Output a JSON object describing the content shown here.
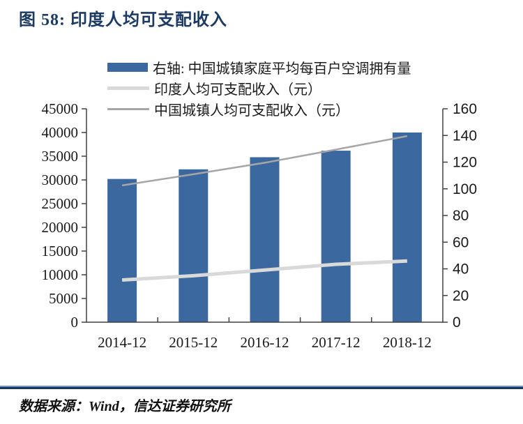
{
  "header": {
    "title": "图 58: 印度人均可支配收入"
  },
  "colors": {
    "title": "#1B3A64",
    "axis": "#404040",
    "text": "#1A1A1A",
    "separator_top": "#6E93C4",
    "separator_bottom": "#17375E",
    "background": "#FFFFFF"
  },
  "footer": {
    "source": "数据来源：Wind，信达证券研究所"
  },
  "chart_data": {
    "type": "bar",
    "subtype": "combo-bar-line-dual-axis",
    "title": "图 58: 印度人均可支配收入",
    "categories": [
      "2014-12",
      "2015-12",
      "2016-12",
      "2017-12",
      "2018-12"
    ],
    "series": [
      {
        "name": "右轴: 中国城镇家庭平均每百户空调拥有量",
        "type": "bar",
        "axis": "right",
        "color": "#3B689E",
        "values": [
          107.4,
          114.6,
          123.7,
          128.6,
          142.2
        ]
      },
      {
        "name": "印度人均可支配收入（元）",
        "type": "line",
        "axis": "left",
        "color": "#D9D9D9",
        "stroke_width": 5,
        "values": [
          8900,
          9800,
          11000,
          12200,
          12900
        ]
      },
      {
        "name": "中国城镇人均可支配收入（元）",
        "type": "line",
        "axis": "left",
        "color": "#A6A6A6",
        "stroke_width": 2.5,
        "values": [
          28844,
          31195,
          33616,
          36396,
          39251
        ]
      }
    ],
    "left_axis": {
      "min": 0,
      "max": 45000,
      "step": 5000,
      "tick_labels": [
        "0",
        "5000",
        "10000",
        "15000",
        "20000",
        "25000",
        "30000",
        "35000",
        "40000",
        "45000"
      ]
    },
    "right_axis": {
      "min": 0,
      "max": 160,
      "step": 20,
      "tick_labels": [
        "0",
        "20",
        "40",
        "60",
        "80",
        "100",
        "120",
        "140",
        "160"
      ]
    },
    "legend_position": "top-left",
    "grid": false
  }
}
